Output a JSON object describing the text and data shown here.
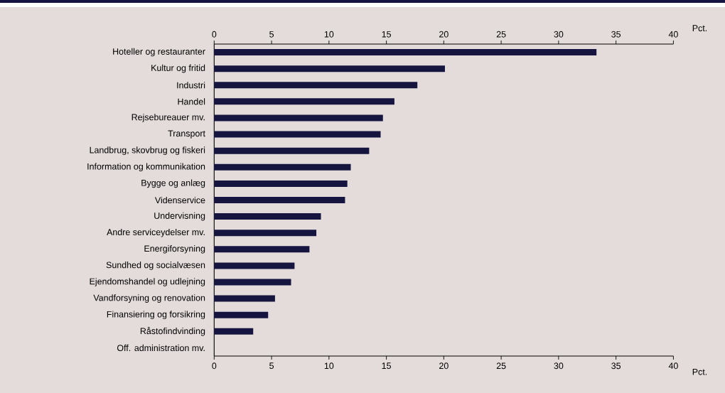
{
  "chart_data": {
    "type": "bar",
    "orientation": "horizontal",
    "categories": [
      "Hoteller og restauranter",
      "Kultur og fritid",
      "Industri",
      "Handel",
      "Rejsebureauer mv.",
      "Transport",
      "Landbrug, skovbrug og fiskeri",
      "Information og kommunikation",
      "Bygge og anlæg",
      "Videnservice",
      "Undervisning",
      "Andre serviceydelser mv.",
      "Energiforsyning",
      "Sundhed og socialvæsen",
      "Ejendomshandel og udlejning",
      "Vandforsyning og renovation",
      "Finansiering og forsikring",
      "Råstofindvinding",
      "Off. administration mv."
    ],
    "values": [
      33.3,
      20.1,
      17.7,
      15.7,
      14.7,
      14.5,
      13.5,
      11.9,
      11.6,
      11.4,
      9.3,
      8.9,
      8.3,
      7.0,
      6.7,
      5.3,
      4.7,
      3.4,
      0
    ],
    "color": "#151540",
    "xlabel": "Pct.",
    "x2label": "Pct.",
    "xlim": [
      0,
      40
    ],
    "xticks": [
      0,
      5,
      10,
      15,
      20,
      25,
      30,
      35,
      40
    ],
    "x2lim": [
      0,
      40
    ],
    "x2ticks": [
      0,
      5,
      10,
      15,
      20,
      25,
      30,
      35,
      40
    ]
  }
}
